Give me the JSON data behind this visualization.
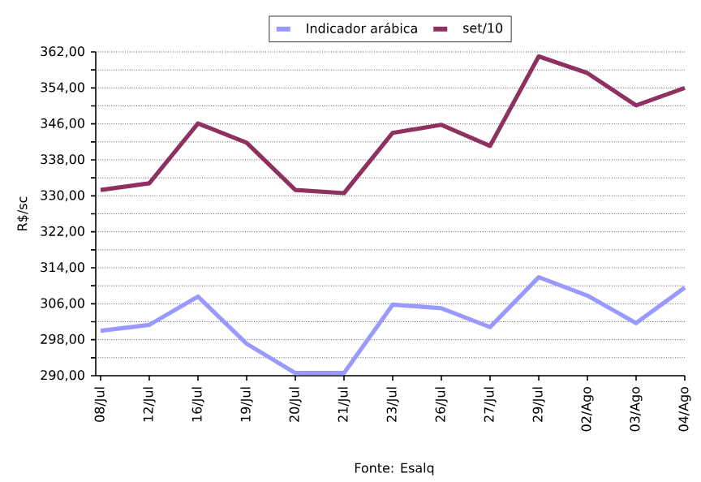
{
  "chart_data": {
    "type": "line",
    "categories": [
      "08/Jul",
      "12/Jul",
      "16/Jul",
      "19/Jul",
      "20/Jul",
      "21/Jul",
      "23/Jul",
      "26/Jul",
      "27/Jul",
      "29/Jul",
      "02/Ago",
      "03/Ago",
      "04/Ago"
    ],
    "series": [
      {
        "name": "Indicador arábica",
        "color": "#9999ff",
        "values": [
          300.0,
          301.3,
          307.6,
          297.1,
          290.6,
          290.6,
          305.8,
          305.0,
          300.8,
          311.9,
          307.8,
          301.7,
          309.6
        ]
      },
      {
        "name": "set/10",
        "color": "#8e3060",
        "values": [
          331.3,
          332.8,
          346.1,
          341.8,
          331.3,
          330.6,
          344.0,
          345.8,
          341.1,
          361.0,
          357.3,
          350.1,
          354.0
        ]
      }
    ],
    "ylabel": "R$/sc",
    "ylim": [
      290,
      362
    ],
    "yticks": [
      {
        "value": 290,
        "label": "290,00"
      },
      {
        "value": 294,
        "label": null
      },
      {
        "value": 298,
        "label": "298,00"
      },
      {
        "value": 302,
        "label": null
      },
      {
        "value": 306,
        "label": "306,00"
      },
      {
        "value": 310,
        "label": null
      },
      {
        "value": 314,
        "label": "314,00"
      },
      {
        "value": 318,
        "label": null
      },
      {
        "value": 322,
        "label": "322,00"
      },
      {
        "value": 326,
        "label": null
      },
      {
        "value": 330,
        "label": "330,00"
      },
      {
        "value": 334,
        "label": null
      },
      {
        "value": 338,
        "label": "338,00"
      },
      {
        "value": 342,
        "label": null
      },
      {
        "value": 346,
        "label": "346,00"
      },
      {
        "value": 350,
        "label": null
      },
      {
        "value": 354,
        "label": "354,00"
      },
      {
        "value": 358,
        "label": null
      },
      {
        "value": 362,
        "label": "362,00"
      }
    ],
    "grid": "y",
    "legend": "top",
    "line_style": "solid",
    "annotations": [
      "Fonte: Esalq"
    ]
  }
}
